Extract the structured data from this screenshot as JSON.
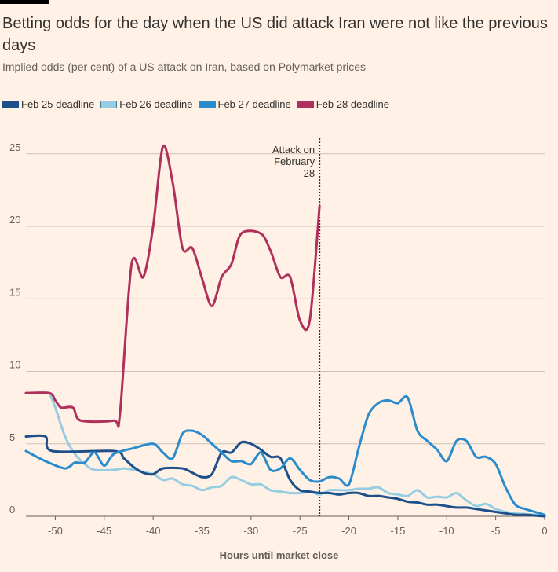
{
  "title": "Betting odds for the day when the US did attack Iran were not like the previous days",
  "subtitle": "Implied odds (per cent) of a US attack on Iran, based on Polymarket prices",
  "chart_data": {
    "type": "line",
    "xlabel": "Hours until market close",
    "ylabel": "",
    "xlim": [
      -53,
      0
    ],
    "ylim": [
      0,
      26
    ],
    "xticks": [
      -50,
      -45,
      -40,
      -35,
      -30,
      -25,
      -20,
      -15,
      -10,
      -5,
      0
    ],
    "yticks": [
      0,
      5,
      10,
      15,
      20,
      25
    ],
    "grid": "horizontal",
    "legend": "top-left",
    "annotation": {
      "x": -23,
      "text": [
        "Attack on",
        "February",
        "28"
      ]
    },
    "series": [
      {
        "name": "Feb 25 deadline",
        "color": "#1d4f8b",
        "points": [
          [
            -53,
            5.5
          ],
          [
            -51,
            5.5
          ],
          [
            -50.3,
            4.5
          ],
          [
            -44,
            4.5
          ],
          [
            -43,
            4.0
          ],
          [
            -42,
            3.4
          ],
          [
            -41,
            3.0
          ],
          [
            -40,
            2.9
          ],
          [
            -39,
            3.3
          ],
          [
            -37,
            3.3
          ],
          [
            -36,
            3.0
          ],
          [
            -35,
            2.7
          ],
          [
            -34,
            2.9
          ],
          [
            -33,
            4.4
          ],
          [
            -32,
            4.4
          ],
          [
            -31,
            5.1
          ],
          [
            -30,
            5.0
          ],
          [
            -29,
            4.6
          ],
          [
            -28,
            4.1
          ],
          [
            -27,
            4.0
          ],
          [
            -26,
            2.5
          ],
          [
            -25,
            1.8
          ],
          [
            -24,
            1.7
          ],
          [
            -23,
            1.6
          ],
          [
            -22,
            1.6
          ],
          [
            -21,
            1.5
          ],
          [
            -20,
            1.6
          ],
          [
            -19,
            1.6
          ],
          [
            -18,
            1.4
          ],
          [
            -17,
            1.4
          ],
          [
            -16,
            1.3
          ],
          [
            -15,
            1.2
          ],
          [
            -14,
            1.0
          ],
          [
            -13,
            0.95
          ],
          [
            -12,
            0.8
          ],
          [
            -11,
            0.8
          ],
          [
            -10,
            0.7
          ],
          [
            -9,
            0.6
          ],
          [
            -8,
            0.6
          ],
          [
            -7,
            0.5
          ],
          [
            -6,
            0.4
          ],
          [
            -5,
            0.3
          ],
          [
            -4,
            0.2
          ],
          [
            -3,
            0.1
          ],
          [
            -2,
            0.1
          ],
          [
            -1,
            0.05
          ],
          [
            0,
            0
          ]
        ]
      },
      {
        "name": "Feb 26 deadline",
        "color": "#96cde2",
        "points": [
          [
            -50.6,
            8.5
          ],
          [
            -50,
            7.5
          ],
          [
            -49,
            5.5
          ],
          [
            -48,
            4.3
          ],
          [
            -47,
            3.6
          ],
          [
            -46,
            3.2
          ],
          [
            -44,
            3.2
          ],
          [
            -43,
            3.3
          ],
          [
            -42,
            3.2
          ],
          [
            -40,
            2.9
          ],
          [
            -39,
            2.5
          ],
          [
            -38,
            2.6
          ],
          [
            -37,
            2.2
          ],
          [
            -36,
            2.1
          ],
          [
            -35,
            1.8
          ],
          [
            -34,
            2.0
          ],
          [
            -33,
            2.1
          ],
          [
            -32,
            2.7
          ],
          [
            -31,
            2.5
          ],
          [
            -30,
            2.2
          ],
          [
            -29,
            2.2
          ],
          [
            -28,
            1.8
          ],
          [
            -27,
            1.7
          ],
          [
            -26,
            1.6
          ],
          [
            -25,
            1.6
          ],
          [
            -24,
            1.7
          ],
          [
            -23,
            1.5
          ],
          [
            -22,
            1.8
          ],
          [
            -21,
            1.8
          ],
          [
            -20,
            1.8
          ],
          [
            -19,
            1.9
          ],
          [
            -18,
            1.9
          ],
          [
            -17,
            2.0
          ],
          [
            -16,
            1.6
          ],
          [
            -15,
            1.5
          ],
          [
            -14,
            1.4
          ],
          [
            -13,
            1.8
          ],
          [
            -12,
            1.3
          ],
          [
            -11,
            1.35
          ],
          [
            -10,
            1.3
          ],
          [
            -9,
            1.6
          ],
          [
            -8,
            1.1
          ],
          [
            -7,
            0.7
          ],
          [
            -6,
            0.85
          ],
          [
            -5,
            0.5
          ],
          [
            -4,
            0.3
          ],
          [
            -3,
            0.2
          ],
          [
            -2,
            0.15
          ],
          [
            -1,
            0.1
          ],
          [
            0,
            0
          ]
        ]
      },
      {
        "name": "Feb 27 deadline",
        "color": "#2a8ccc",
        "points": [
          [
            -53,
            4.5
          ],
          [
            -51,
            3.8
          ],
          [
            -49,
            3.3
          ],
          [
            -48,
            3.7
          ],
          [
            -47,
            3.7
          ],
          [
            -46,
            4.4
          ],
          [
            -45,
            3.5
          ],
          [
            -44,
            4.3
          ],
          [
            -42,
            4.7
          ],
          [
            -40,
            5.0
          ],
          [
            -39,
            4.4
          ],
          [
            -38,
            4.0
          ],
          [
            -37,
            5.7
          ],
          [
            -36,
            5.9
          ],
          [
            -35,
            5.6
          ],
          [
            -34,
            5.0
          ],
          [
            -33,
            4.4
          ],
          [
            -32,
            3.8
          ],
          [
            -31,
            3.8
          ],
          [
            -30,
            3.6
          ],
          [
            -29,
            4.4
          ],
          [
            -28,
            3.2
          ],
          [
            -27,
            3.3
          ],
          [
            -26,
            4.0
          ],
          [
            -25,
            3.2
          ],
          [
            -24,
            2.5
          ],
          [
            -23,
            2.4
          ],
          [
            -22,
            2.7
          ],
          [
            -21,
            2.6
          ],
          [
            -20,
            2.2
          ],
          [
            -19,
            4.7
          ],
          [
            -18,
            7.0
          ],
          [
            -17,
            7.8
          ],
          [
            -16,
            8.0
          ],
          [
            -15,
            7.8
          ],
          [
            -14,
            8.2
          ],
          [
            -13,
            5.9
          ],
          [
            -12,
            5.2
          ],
          [
            -11,
            4.6
          ],
          [
            -10,
            3.8
          ],
          [
            -9,
            5.2
          ],
          [
            -8,
            5.2
          ],
          [
            -7,
            4.1
          ],
          [
            -6,
            4.1
          ],
          [
            -5,
            3.6
          ],
          [
            -4,
            2.0
          ],
          [
            -3,
            0.8
          ],
          [
            -2,
            0.5
          ],
          [
            -1,
            0.3
          ],
          [
            0,
            0.1
          ]
        ]
      },
      {
        "name": "Feb 28 deadline",
        "color": "#b0305c",
        "points": [
          [
            -53,
            8.5
          ],
          [
            -50.6,
            8.5
          ],
          [
            -50,
            8.0
          ],
          [
            -49.4,
            7.5
          ],
          [
            -48.2,
            7.5
          ],
          [
            -47.4,
            6.6
          ],
          [
            -44,
            6.6
          ],
          [
            -43.4,
            7.0
          ],
          [
            -42.2,
            17.4
          ],
          [
            -41,
            16.5
          ],
          [
            -40,
            20
          ],
          [
            -39,
            25.5
          ],
          [
            -38,
            23
          ],
          [
            -37,
            18.5
          ],
          [
            -36,
            18.5
          ],
          [
            -35,
            16.4
          ],
          [
            -34,
            14.5
          ],
          [
            -33,
            16.5
          ],
          [
            -32,
            17.4
          ],
          [
            -31,
            19.5
          ],
          [
            -29,
            19.5
          ],
          [
            -28,
            18.3
          ],
          [
            -27,
            16.5
          ],
          [
            -26,
            16.5
          ],
          [
            -25,
            13.5
          ],
          [
            -24,
            13.5
          ],
          [
            -23,
            21.4
          ]
        ]
      }
    ]
  }
}
